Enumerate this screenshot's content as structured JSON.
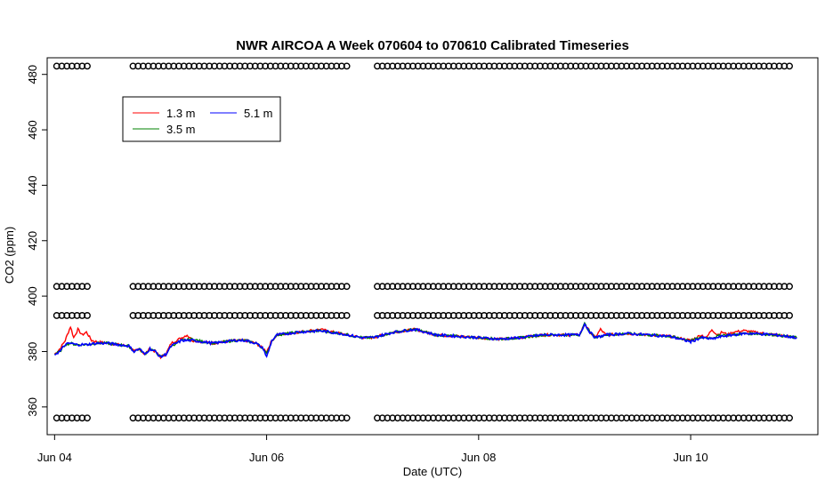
{
  "chart_data": {
    "type": "line",
    "title": "NWR AIRCOA A  Week 070604 to 070610  Calibrated Timeseries",
    "xlabel": "Date (UTC)",
    "ylabel": "CO2 (ppm)",
    "xlim": [
      -0.07,
      7.2
    ],
    "ylim": [
      350,
      486
    ],
    "x_tick_labels": [
      "Jun 04",
      "Jun 06",
      "Jun 08",
      "Jun 10"
    ],
    "x_tick_values": [
      0,
      2,
      4,
      6
    ],
    "y_ticks": [
      360,
      380,
      400,
      420,
      440,
      460,
      480
    ],
    "grid": false,
    "legend_position": "top-left",
    "x_unit_note": "x values are days since Jun 04 00:00 UTC",
    "series": [
      {
        "name": "1.3 m",
        "color": "#ff0000",
        "x": [
          0.0,
          0.05,
          0.1,
          0.15,
          0.18,
          0.22,
          0.26,
          0.3,
          0.35,
          0.4,
          0.5,
          0.6,
          0.7,
          0.75,
          0.8,
          0.85,
          0.9,
          0.95,
          1.0,
          1.05,
          1.1,
          1.15,
          1.2,
          1.25,
          1.3,
          1.4,
          1.5,
          1.6,
          1.7,
          1.8,
          1.9,
          1.97,
          2.0,
          2.05,
          2.1,
          2.3,
          2.5,
          2.7,
          2.9,
          3.0,
          3.2,
          3.4,
          3.6,
          3.8,
          4.0,
          4.2,
          4.4,
          4.6,
          4.8,
          4.95,
          5.0,
          5.05,
          5.1,
          5.15,
          5.2,
          5.4,
          5.6,
          5.8,
          6.0,
          6.1,
          6.15,
          6.2,
          6.25,
          6.3,
          6.35,
          6.4,
          6.5,
          6.6,
          6.8,
          7.0
        ],
        "y": [
          379,
          381,
          384,
          389,
          385,
          388,
          386,
          387,
          384,
          383.5,
          383,
          382.5,
          382,
          380,
          381,
          379,
          381,
          380,
          378,
          379,
          383,
          384,
          385,
          386,
          384,
          383.5,
          383,
          383.5,
          384,
          384,
          383,
          381,
          380,
          384,
          386,
          387,
          388,
          386.5,
          385,
          385,
          387,
          388,
          386,
          385.5,
          385,
          384.5,
          385,
          386,
          386,
          386,
          390,
          387,
          385,
          388,
          386,
          386.5,
          386,
          385.5,
          384,
          386,
          385,
          388,
          386,
          387,
          386,
          387,
          387.5,
          387,
          386,
          385
        ]
      },
      {
        "name": "3.5 m",
        "color": "#008000",
        "x": [
          0.0,
          0.05,
          0.1,
          0.15,
          0.2,
          0.3,
          0.4,
          0.5,
          0.6,
          0.7,
          0.75,
          0.8,
          0.85,
          0.9,
          0.95,
          1.0,
          1.05,
          1.1,
          1.2,
          1.3,
          1.4,
          1.5,
          1.6,
          1.7,
          1.8,
          1.9,
          1.97,
          2.0,
          2.05,
          2.1,
          2.3,
          2.5,
          2.7,
          2.9,
          3.0,
          3.2,
          3.4,
          3.6,
          3.8,
          4.0,
          4.2,
          4.4,
          4.6,
          4.8,
          4.95,
          5.0,
          5.05,
          5.1,
          5.2,
          5.4,
          5.6,
          5.8,
          6.0,
          6.1,
          6.2,
          6.3,
          6.4,
          6.5,
          6.6,
          6.8,
          7.0
        ],
        "y": [
          379,
          380,
          382.5,
          383,
          382.5,
          382.5,
          383,
          383,
          382.5,
          382,
          380,
          381,
          379,
          381,
          380,
          378,
          379,
          382,
          384,
          384.5,
          383.5,
          383,
          383.5,
          384,
          384,
          383,
          381,
          379,
          384,
          386,
          387,
          387.5,
          386.5,
          385,
          385,
          387,
          388,
          386,
          385.5,
          385,
          384.5,
          385,
          386,
          386,
          386,
          390,
          387,
          385,
          386,
          386.5,
          386,
          385.5,
          384,
          385,
          385,
          386,
          386,
          386.5,
          386.5,
          386,
          385
        ]
      },
      {
        "name": "5.1 m",
        "color": "#0000ff",
        "x": [
          0.0,
          0.05,
          0.1,
          0.15,
          0.2,
          0.3,
          0.4,
          0.5,
          0.6,
          0.7,
          0.75,
          0.8,
          0.85,
          0.9,
          0.95,
          1.0,
          1.05,
          1.1,
          1.2,
          1.3,
          1.4,
          1.5,
          1.6,
          1.7,
          1.8,
          1.9,
          1.97,
          2.0,
          2.05,
          2.1,
          2.3,
          2.5,
          2.7,
          2.9,
          3.0,
          3.2,
          3.4,
          3.6,
          3.8,
          4.0,
          4.2,
          4.4,
          4.6,
          4.8,
          4.95,
          5.0,
          5.05,
          5.1,
          5.2,
          5.4,
          5.6,
          5.8,
          6.0,
          6.1,
          6.2,
          6.3,
          6.4,
          6.5,
          6.6,
          6.8,
          7.0
        ],
        "y": [
          379,
          380,
          382.5,
          383,
          382.5,
          382.5,
          383,
          383,
          382.5,
          382,
          380,
          381,
          379,
          381,
          380,
          378,
          379,
          382,
          384,
          384,
          383.5,
          383,
          383.5,
          384,
          384,
          383,
          381,
          378,
          384,
          386,
          387,
          387.5,
          386.5,
          385,
          385,
          387,
          388,
          386,
          385.5,
          385,
          384.5,
          385,
          386,
          386,
          386,
          390,
          387,
          385,
          386,
          386.5,
          386,
          385.5,
          383.5,
          385,
          384.5,
          385.5,
          386,
          386.5,
          386.5,
          386,
          385
        ]
      }
    ],
    "reference_markers": {
      "symbol": "circle",
      "color": "#000000",
      "levels": [
        356,
        393,
        403.5,
        483
      ]
    }
  }
}
